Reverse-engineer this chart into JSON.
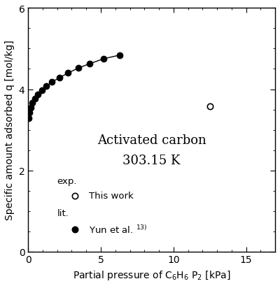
{
  "xlabel": "Partial pressure of C$_6$H$_6$ P$_2$ [kPa]",
  "ylabel": "Specific amount adsorbed q [mol/kg]",
  "xlim": [
    0,
    17
  ],
  "ylim": [
    0,
    6
  ],
  "xticks": [
    0,
    5,
    10,
    15
  ],
  "yticks": [
    0,
    2,
    4,
    6
  ],
  "annotation_text1": "Activated carbon",
  "annotation_text2": "303.15 K",
  "lit_x": [
    0.05,
    0.1,
    0.18,
    0.3,
    0.48,
    0.68,
    0.95,
    1.25,
    1.65,
    2.15,
    2.75,
    3.45,
    4.25,
    5.2,
    6.3
  ],
  "lit_y": [
    3.28,
    3.42,
    3.55,
    3.66,
    3.76,
    3.87,
    3.97,
    4.07,
    4.18,
    4.28,
    4.4,
    4.52,
    4.63,
    4.75,
    4.84
  ],
  "exp_x": [
    12.5
  ],
  "exp_y": [
    3.57
  ],
  "legend_exp_label": "This work",
  "legend_lit_label": "Yun et al. $^{13)}$",
  "background_color": "#ffffff",
  "text_color": "#000000",
  "marker_color_filled": "#000000",
  "marker_color_open": "#ffffff",
  "marker_size": 6,
  "line_color": "#000000",
  "annotation_fontsize": 13,
  "label_fontsize": 10,
  "tick_fontsize": 10,
  "legend_fontsize": 9.5
}
